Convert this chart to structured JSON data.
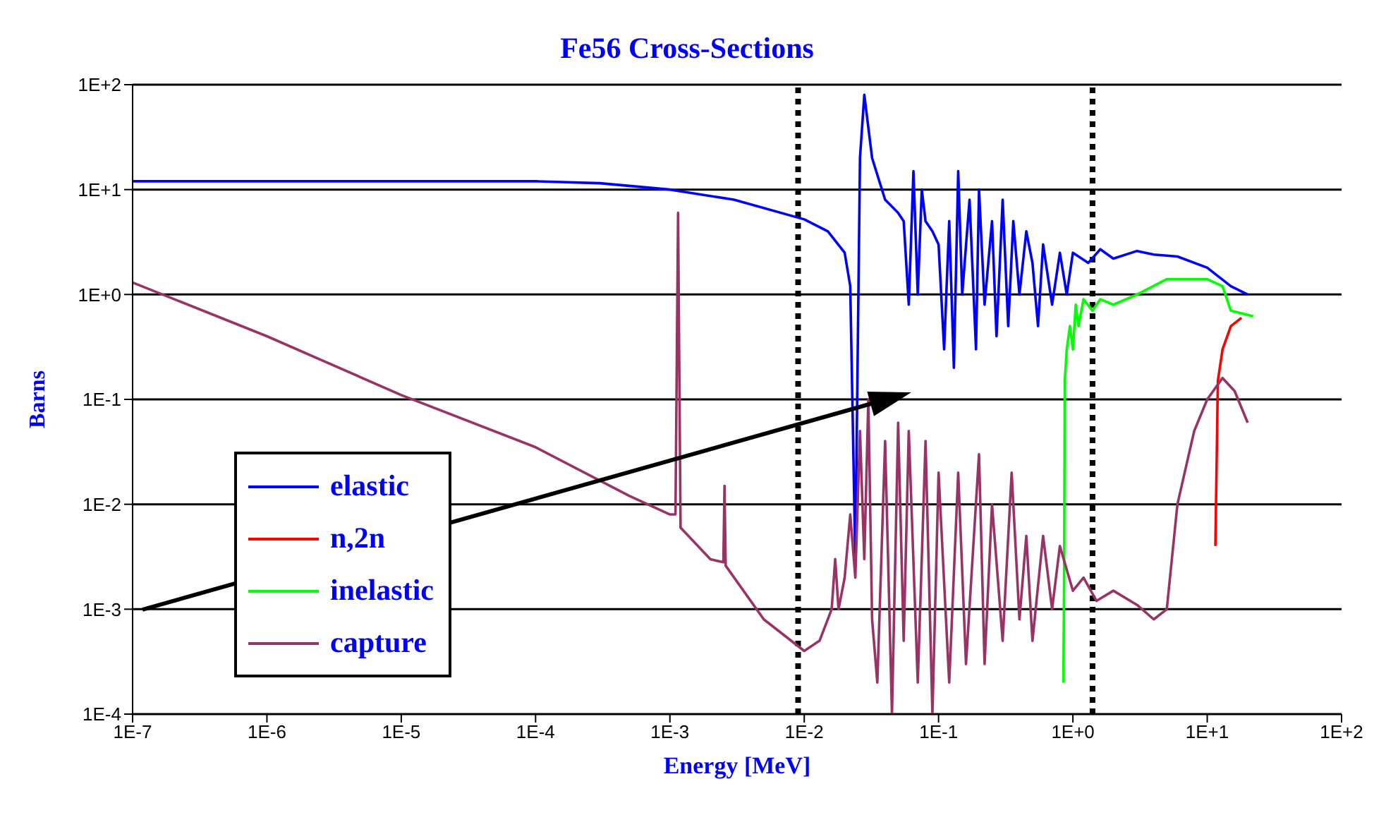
{
  "chart_data": {
    "type": "line",
    "title": "Fe56 Cross-Sections",
    "xlabel": "Energy [MeV]",
    "ylabel": "Barns",
    "log": "xy",
    "grid": "y",
    "legend": "left",
    "xlim": [
      1e-07,
      100
    ],
    "ylim": [
      0.0001,
      100
    ],
    "xticks": [
      {
        "value": 1e-07,
        "label": "1E-7"
      },
      {
        "value": 1e-06,
        "label": "1E-6"
      },
      {
        "value": 1e-05,
        "label": "1E-5"
      },
      {
        "value": 0.0001,
        "label": "1E-4"
      },
      {
        "value": 0.001,
        "label": "1E-3"
      },
      {
        "value": 0.01,
        "label": "1E-2"
      },
      {
        "value": 0.1,
        "label": "1E-1"
      },
      {
        "value": 1,
        "label": "1E+0"
      },
      {
        "value": 10,
        "label": "1E+1"
      },
      {
        "value": 100,
        "label": "1E+2"
      }
    ],
    "yticks": [
      {
        "value": 0.0001,
        "label": "1E-4"
      },
      {
        "value": 0.001,
        "label": "1E-3"
      },
      {
        "value": 0.01,
        "label": "1E-2"
      },
      {
        "value": 0.1,
        "label": "1E-1"
      },
      {
        "value": 1,
        "label": "1E+0"
      },
      {
        "value": 10,
        "label": "1E+1"
      },
      {
        "value": 100,
        "label": "1E+2"
      }
    ],
    "ref_lines": [
      {
        "axis": "x",
        "value": 0.009,
        "color": "#000000",
        "line_style": "dotted"
      },
      {
        "axis": "x",
        "value": 1.4,
        "color": "#000000",
        "line_style": "dotted"
      }
    ],
    "series": [
      {
        "name": "elastic",
        "color": "#0000ff",
        "x": [
          1e-07,
          1e-05,
          0.0001,
          0.0003,
          0.001,
          0.003,
          0.01,
          0.015,
          0.02,
          0.022,
          0.024,
          0.026,
          0.028,
          0.032,
          0.04,
          0.05,
          0.055,
          0.06,
          0.065,
          0.07,
          0.075,
          0.08,
          0.09,
          0.1,
          0.11,
          0.12,
          0.13,
          0.14,
          0.15,
          0.17,
          0.19,
          0.2,
          0.22,
          0.25,
          0.27,
          0.3,
          0.33,
          0.36,
          0.4,
          0.45,
          0.5,
          0.55,
          0.6,
          0.7,
          0.8,
          0.9,
          1,
          1.3,
          1.6,
          2,
          3,
          4,
          6,
          10,
          15,
          20
        ],
        "values": [
          12,
          12,
          12,
          11.5,
          10,
          8,
          5.2,
          4,
          2.5,
          1.2,
          0.003,
          20,
          80,
          20,
          8,
          6,
          5,
          0.8,
          15,
          1,
          10,
          5,
          4,
          3,
          0.3,
          5,
          0.2,
          15,
          1,
          8,
          0.3,
          10,
          0.8,
          5,
          0.4,
          8,
          0.5,
          5,
          1,
          4,
          2,
          0.5,
          3,
          0.8,
          2.5,
          1,
          2.5,
          2,
          2.7,
          2.2,
          2.6,
          2.4,
          2.3,
          1.8,
          1.2,
          1
        ]
      },
      {
        "name": "n,2n",
        "color": "#ff0000",
        "x": [
          11.5,
          12,
          13,
          15,
          18
        ],
        "values": [
          0.004,
          0.15,
          0.3,
          0.5,
          0.6
        ]
      },
      {
        "name": "inelastic",
        "color": "#00ff00",
        "x": [
          0.85,
          0.86,
          0.87,
          0.9,
          0.95,
          1,
          1.05,
          1.1,
          1.2,
          1.4,
          1.6,
          2,
          3,
          5,
          10,
          13,
          15,
          22
        ],
        "values": [
          0.0002,
          0.002,
          0.15,
          0.3,
          0.5,
          0.3,
          0.8,
          0.5,
          0.9,
          0.7,
          0.9,
          0.8,
          1,
          1.4,
          1.4,
          1.2,
          0.7,
          0.62
        ]
      },
      {
        "name": "capture",
        "color": "#993366",
        "x": [
          1e-07,
          1e-06,
          1e-05,
          0.0001,
          0.0005,
          0.001,
          0.0011,
          0.00115,
          0.0012,
          0.002,
          0.0025,
          0.00255,
          0.0026,
          0.005,
          0.01,
          0.013,
          0.016,
          0.017,
          0.018,
          0.02,
          0.022,
          0.024,
          0.026,
          0.028,
          0.03,
          0.032,
          0.035,
          0.04,
          0.045,
          0.05,
          0.055,
          0.06,
          0.07,
          0.08,
          0.09,
          0.1,
          0.12,
          0.14,
          0.16,
          0.2,
          0.22,
          0.25,
          0.3,
          0.35,
          0.4,
          0.45,
          0.5,
          0.6,
          0.7,
          0.8,
          1,
          1.2,
          1.5,
          2,
          3,
          4,
          5,
          6,
          8,
          10,
          13,
          16,
          20
        ],
        "values": [
          1.3,
          0.4,
          0.11,
          0.035,
          0.012,
          0.008,
          0.008,
          6,
          0.006,
          0.003,
          0.0028,
          0.015,
          0.0026,
          0.0008,
          0.0004,
          0.0005,
          0.001,
          0.003,
          0.001,
          0.002,
          0.008,
          0.002,
          0.05,
          0.003,
          0.1,
          0.0008,
          0.0002,
          0.04,
          0.0001,
          0.06,
          0.0005,
          0.05,
          0.0002,
          0.04,
          0.0001,
          0.02,
          0.0002,
          0.02,
          0.0003,
          0.03,
          0.0003,
          0.01,
          0.0005,
          0.02,
          0.0008,
          0.005,
          0.0005,
          0.005,
          0.001,
          0.004,
          0.0015,
          0.002,
          0.0012,
          0.0015,
          0.0011,
          0.0008,
          0.001,
          0.01,
          0.05,
          0.1,
          0.16,
          0.12,
          0.06
        ]
      }
    ]
  }
}
